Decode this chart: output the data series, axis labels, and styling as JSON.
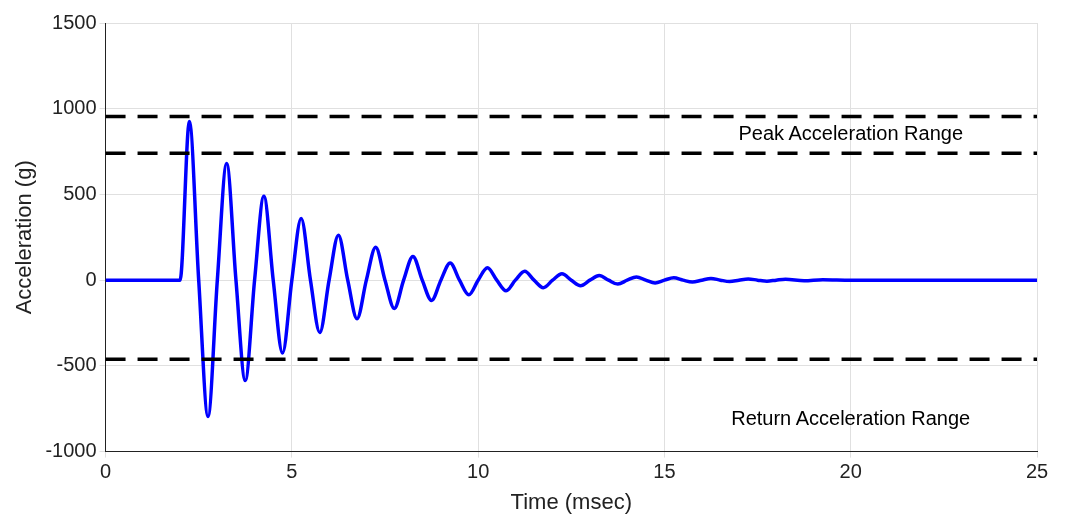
{
  "chart_data": {
    "type": "line",
    "xlabel": "Time (msec)",
    "ylabel": "Acceleration (g)",
    "xlim": [
      0,
      25
    ],
    "xticks": [
      0,
      5,
      10,
      15,
      20,
      25
    ],
    "ylim": [
      -1000,
      1500
    ],
    "yticks": [
      -1000,
      -500,
      0,
      500,
      1000,
      1500
    ],
    "grid": true,
    "legend": false,
    "marker": "none",
    "line_style": "solid",
    "series": [
      {
        "color": "#0000ff",
        "x": [
          0,
          2,
          2.25,
          2.5,
          2.75,
          3,
          3.25,
          3.5,
          3.75,
          4,
          4.25,
          4.5,
          4.75,
          5,
          5.25,
          5.5,
          5.75,
          6,
          6.25,
          6.5,
          6.75,
          7,
          7.25,
          7.5,
          7.75,
          8,
          8.25,
          8.5,
          8.75,
          9,
          9.25,
          9.5,
          9.75,
          10,
          10.25,
          10.5,
          10.75,
          11,
          11.25,
          11.5,
          11.75,
          12,
          12.25,
          12.5,
          12.75,
          13,
          13.25,
          13.5,
          13.75,
          14,
          14.25,
          14.5,
          14.75,
          15,
          15.25,
          15.5,
          15.75,
          16,
          16.25,
          16.5,
          16.75,
          17,
          17.25,
          17.5,
          17.75,
          18,
          18.25,
          18.75,
          19.25,
          20,
          25
        ],
        "values": [
          0,
          0,
          925,
          0,
          -795,
          0,
          680,
          0,
          -585,
          0,
          490,
          0,
          -425,
          0,
          360,
          0,
          -305,
          0,
          262,
          0,
          -225,
          0,
          192,
          0,
          -165,
          0,
          138,
          0,
          -118,
          0,
          100,
          0,
          -85,
          0,
          72,
          0,
          -62,
          0,
          52,
          0,
          -44,
          0,
          37,
          0,
          -32,
          0,
          27,
          0,
          -23,
          0,
          19,
          0,
          -16,
          0,
          14,
          0,
          -11,
          0,
          10,
          0,
          -8,
          0,
          7,
          0,
          -6,
          0,
          5,
          -4,
          3,
          0,
          0
        ]
      }
    ],
    "ref_lines": [
      {
        "axis": "y",
        "value": 955,
        "line_style": "dashed",
        "color": "#000000"
      },
      {
        "axis": "y",
        "value": 740,
        "line_style": "dashed",
        "color": "#000000"
      },
      {
        "axis": "y",
        "value": -462,
        "line_style": "dashed",
        "color": "#000000"
      }
    ],
    "annotations": [
      "Peak Acceleration Range",
      "Return Acceleration Range"
    ]
  }
}
